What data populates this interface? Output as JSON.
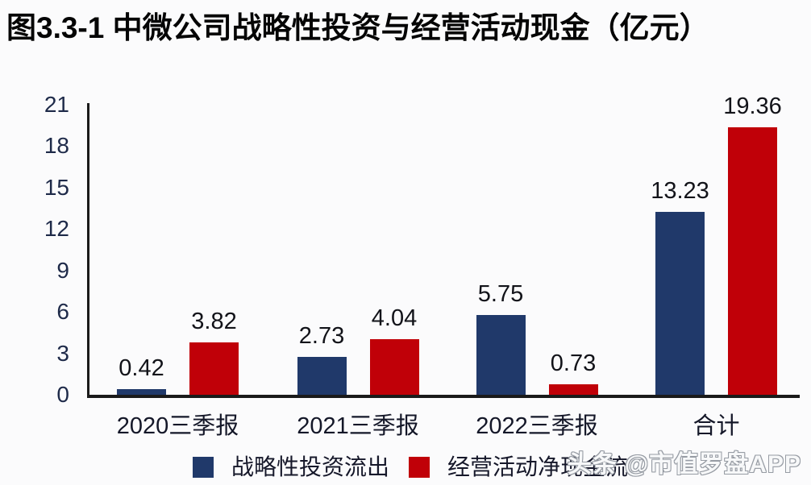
{
  "page": {
    "title": "图3.3-1 中微公司战略性投资与经营活动现金（亿元）",
    "watermark": "头条 @市值罗盘APP"
  },
  "colors": {
    "series_blue": "#20396A",
    "series_red": "#C00008",
    "axis": "#1A1A1A",
    "tick_text": "#1E2A49",
    "label_text": "#121319",
    "watermark_gray": "#979CA4",
    "background": "#FBFBFC",
    "title_text": "#050505"
  },
  "chart_data": {
    "type": "bar",
    "title": "图3.3-1 中微公司战略性投资与经营活动现金（亿元）",
    "categories": [
      "2020三季报",
      "2021三季报",
      "2022三季报",
      "合计"
    ],
    "series": [
      {
        "name": "战略性投资流出",
        "color": "#20396A",
        "values": [
          0.42,
          2.73,
          5.75,
          13.23
        ]
      },
      {
        "name": "经营活动净现金流",
        "color": "#C00008",
        "values": [
          3.82,
          4.04,
          0.73,
          19.36
        ]
      }
    ],
    "value_labels": [
      "0.42",
      "2.73",
      "5.75",
      "13.23",
      "3.82",
      "4.04",
      "0.73",
      "19.36"
    ],
    "xlabel": "",
    "ylabel": "",
    "ylim": [
      0,
      21
    ],
    "yticks": [
      0,
      3,
      6,
      9,
      12,
      15,
      18,
      21
    ],
    "grid": false,
    "legend_position": "bottom"
  }
}
